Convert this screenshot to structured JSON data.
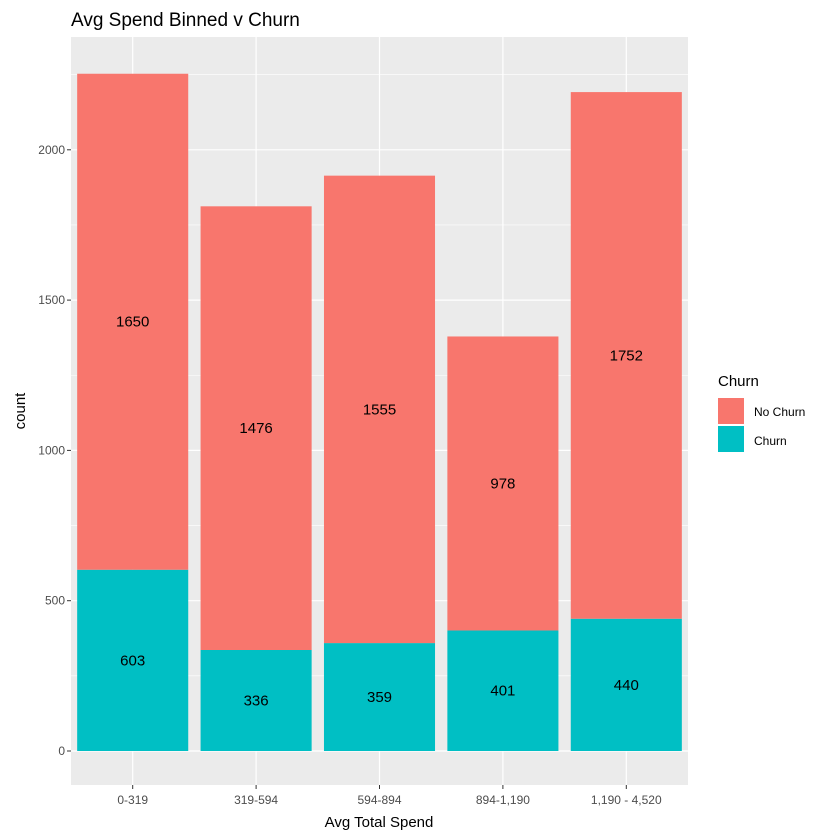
{
  "chart_data": {
    "type": "bar",
    "stacked": true,
    "title": "Avg Spend Binned v Churn",
    "xlabel": "Avg Total Spend",
    "ylabel": "count",
    "categories": [
      "0-319",
      "319-594",
      "594-894",
      "894-1,190",
      "1,190 - 4,520"
    ],
    "series": [
      {
        "name": "Churn",
        "values": [
          603,
          336,
          359,
          401,
          440
        ],
        "color": "#00BFC4"
      },
      {
        "name": "No Churn",
        "values": [
          1650,
          1476,
          1555,
          978,
          1752
        ],
        "color": "#F8766D"
      }
    ],
    "ylim": [
      0,
      2250
    ],
    "yticks": [
      0,
      500,
      1000,
      1500,
      2000
    ],
    "grid": true,
    "legend": {
      "title": "Churn",
      "position": "right",
      "items": [
        {
          "label": "No Churn",
          "color": "#F8766D"
        },
        {
          "label": "Churn",
          "color": "#00BFC4"
        }
      ]
    },
    "panel_background": "#EBEBEB",
    "grid_color": "#FFFFFF"
  }
}
